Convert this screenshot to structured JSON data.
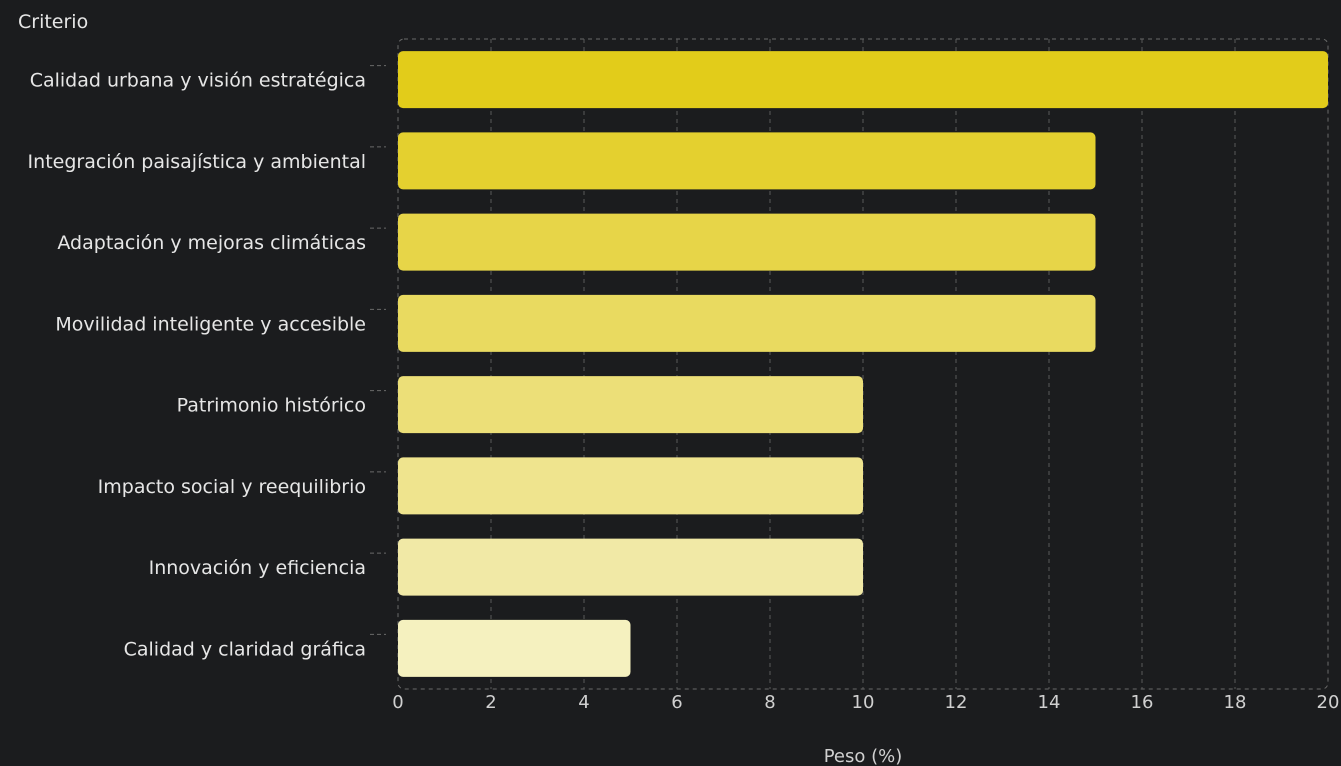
{
  "chart_data": {
    "type": "bar",
    "orientation": "horizontal",
    "title": "",
    "ylabel": "Criterio",
    "xlabel": "Peso (%)",
    "xlim": [
      0,
      20
    ],
    "xticks": [
      "0",
      "2",
      "4",
      "6",
      "8",
      "10",
      "12",
      "14",
      "16",
      "18",
      "20"
    ],
    "grid": true,
    "categories": [
      "Calidad urbana y visión estratégica",
      "Integración paisajística y ambiental",
      "Adaptación y mejoras climáticas",
      "Movilidad inteligente y accesible",
      "Patrimonio histórico",
      "Impacto social y reequilibrio",
      "Innovación y eficiencia",
      "Calidad y claridad gráfica"
    ],
    "values": [
      20,
      15,
      15,
      15,
      10,
      10,
      10,
      5
    ],
    "colors": [
      "#e2cc1a",
      "#e4d02f",
      "#e7d548",
      "#e9da60",
      "#ecdf78",
      "#efe48e",
      "#f1e9a6",
      "#f5f1bf"
    ]
  }
}
